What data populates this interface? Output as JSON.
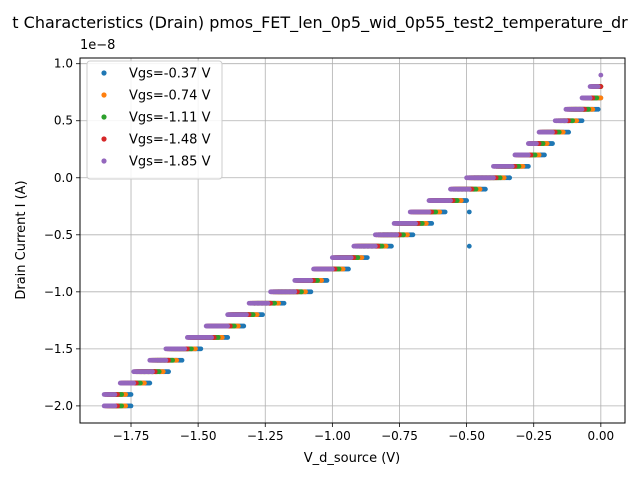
{
  "chart_data": {
    "type": "scatter",
    "title": "t Characteristics (Drain) pmos_FET_len_0p5_wid_0p55_test2_temperature_dr",
    "xlabel": "V_d_source (V)",
    "ylabel": "Drain Current I (A)",
    "y_offset_label": "1e−8",
    "xlim": [
      -1.94,
      0.09
    ],
    "ylim": [
      -2.15,
      1.05
    ],
    "y_unit_scale": 1e-08,
    "xticks": [
      -1.75,
      -1.5,
      -1.25,
      -1.0,
      -0.75,
      -0.5,
      -0.25,
      0.0
    ],
    "xtick_labels": [
      "−1.75",
      "−1.50",
      "−1.25",
      "−1.00",
      "−0.75",
      "−0.50",
      "−0.25",
      "0.00"
    ],
    "yticks": [
      -2.0,
      -1.5,
      -1.0,
      -0.5,
      0.0,
      0.5,
      1.0
    ],
    "ytick_labels": [
      "−2.0",
      "−1.5",
      "−1.0",
      "−0.5",
      "0.0",
      "0.5",
      "1.0"
    ],
    "grid": true,
    "legend_position": "top-left",
    "series": [
      {
        "name": "Vgs=-0.37 V",
        "color": "#1f77b4",
        "shift": 0.06,
        "outliers": [
          [
            -0.49,
            -0.6
          ],
          [
            -0.49,
            -0.3
          ],
          [
            -0.34,
            0.0
          ]
        ]
      },
      {
        "name": "Vgs=-0.74 V",
        "color": "#ff7f0e",
        "shift": 0.04,
        "outliers": []
      },
      {
        "name": "Vgs=-1.11 V",
        "color": "#2ca02c",
        "shift": 0.025,
        "outliers": []
      },
      {
        "name": "Vgs=-1.48 V",
        "color": "#d62728",
        "shift": 0.01,
        "outliers": []
      },
      {
        "name": "Vgs=-1.85 V",
        "color": "#9467bd",
        "shift": 0.0,
        "outliers": [
          [
            0.0,
            0.9
          ]
        ]
      }
    ],
    "staircase_levels": [
      {
        "current": -2.0,
        "vd_start": -1.85,
        "vd_end": -1.81
      },
      {
        "current": -1.9,
        "vd_start": -1.85,
        "vd_end": -1.81
      },
      {
        "current": -1.8,
        "vd_start": -1.79,
        "vd_end": -1.74
      },
      {
        "current": -1.7,
        "vd_start": -1.74,
        "vd_end": -1.67
      },
      {
        "current": -1.6,
        "vd_start": -1.68,
        "vd_end": -1.62
      },
      {
        "current": -1.5,
        "vd_start": -1.62,
        "vd_end": -1.55
      },
      {
        "current": -1.4,
        "vd_start": -1.54,
        "vd_end": -1.45
      },
      {
        "current": -1.3,
        "vd_start": -1.47,
        "vd_end": -1.39
      },
      {
        "current": -1.2,
        "vd_start": -1.39,
        "vd_end": -1.32
      },
      {
        "current": -1.1,
        "vd_start": -1.31,
        "vd_end": -1.24
      },
      {
        "current": -1.0,
        "vd_start": -1.23,
        "vd_end": -1.14
      },
      {
        "current": -0.9,
        "vd_start": -1.14,
        "vd_end": -1.08
      },
      {
        "current": -0.8,
        "vd_start": -1.07,
        "vd_end": -1.0
      },
      {
        "current": -0.7,
        "vd_start": -1.0,
        "vd_end": -0.93
      },
      {
        "current": -0.6,
        "vd_start": -0.92,
        "vd_end": -0.84
      },
      {
        "current": -0.5,
        "vd_start": -0.84,
        "vd_end": -0.76
      },
      {
        "current": -0.4,
        "vd_start": -0.77,
        "vd_end": -0.69
      },
      {
        "current": -0.3,
        "vd_start": -0.71,
        "vd_end": -0.64
      },
      {
        "current": -0.2,
        "vd_start": -0.64,
        "vd_end": -0.56
      },
      {
        "current": -0.1,
        "vd_start": -0.56,
        "vd_end": -0.49
      },
      {
        "current": 0.0,
        "vd_start": -0.5,
        "vd_end": -0.4
      },
      {
        "current": 0.1,
        "vd_start": -0.4,
        "vd_end": -0.33
      },
      {
        "current": 0.2,
        "vd_start": -0.32,
        "vd_end": -0.27
      },
      {
        "current": 0.3,
        "vd_start": -0.27,
        "vd_end": -0.24
      },
      {
        "current": 0.4,
        "vd_start": -0.23,
        "vd_end": -0.18
      },
      {
        "current": 0.5,
        "vd_start": -0.17,
        "vd_end": -0.13
      },
      {
        "current": 0.6,
        "vd_start": -0.13,
        "vd_end": -0.07
      },
      {
        "current": 0.7,
        "vd_start": -0.07,
        "vd_end": -0.04
      },
      {
        "current": 0.8,
        "vd_start": -0.04,
        "vd_end": -0.01
      }
    ]
  }
}
